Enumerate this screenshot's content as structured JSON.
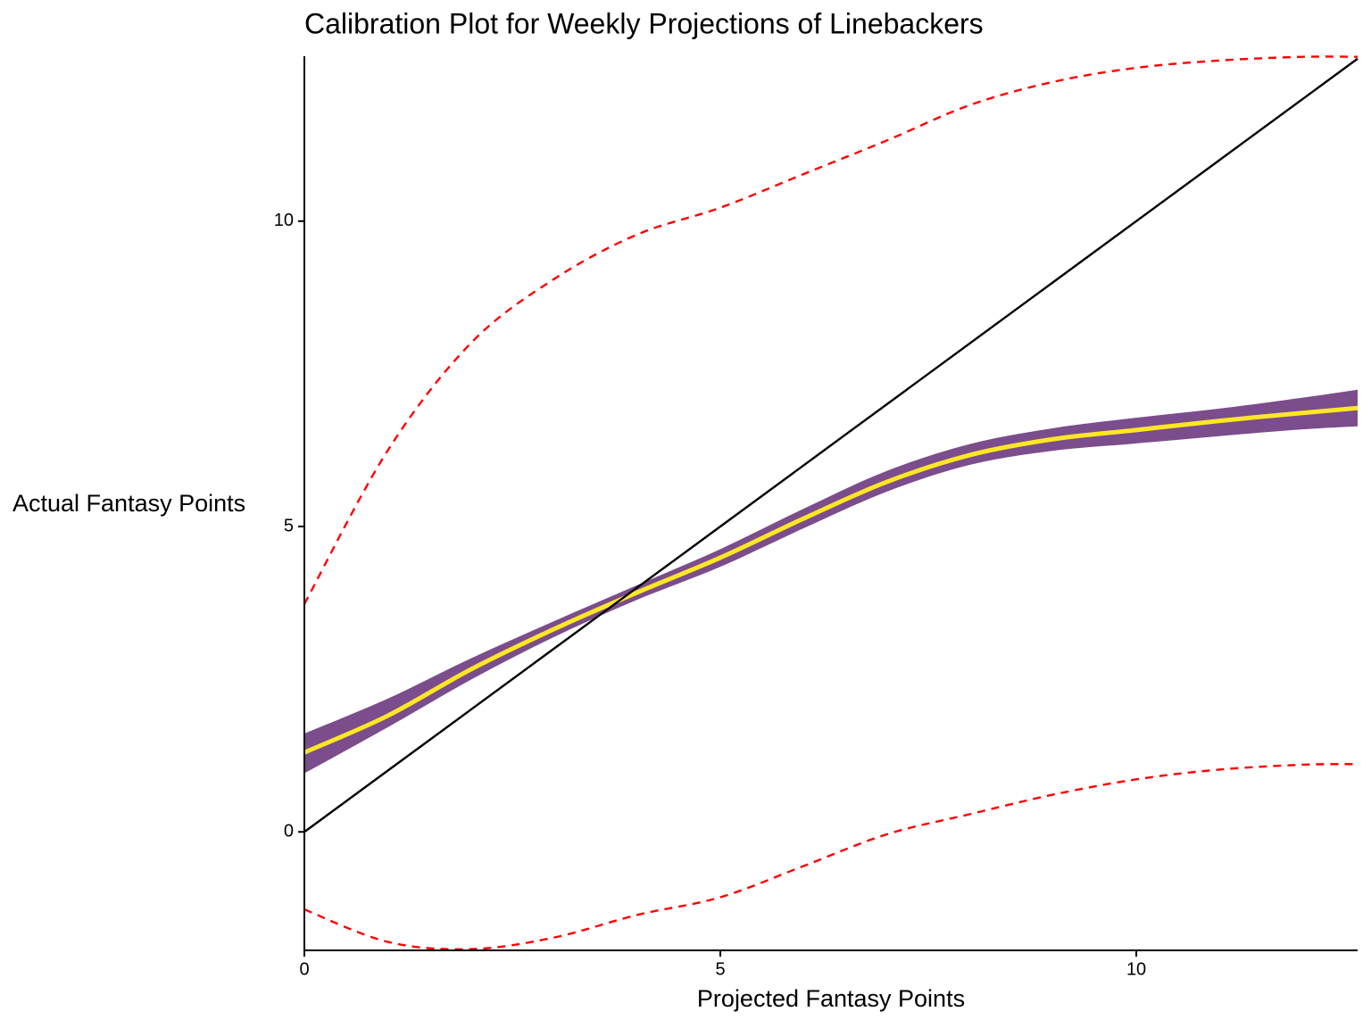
{
  "chart_data": {
    "type": "line",
    "title": "Calibration Plot for Weekly Projections of Linebackers",
    "x_label": "Projected Fantasy Points",
    "y_label": "Actual Fantasy Points",
    "x": [
      0,
      1,
      2,
      3,
      4,
      5,
      6,
      7,
      8,
      9,
      10,
      11,
      12,
      12.66
    ],
    "series": [
      {
        "color": "#fde725",
        "band_color": "#7b4d8c",
        "dash": false,
        "values": [
          1.3,
          1.9,
          2.66,
          3.32,
          3.92,
          4.49,
          5.13,
          5.73,
          6.17,
          6.43,
          6.58,
          6.73,
          6.86,
          6.94
        ],
        "lower": [
          0.96,
          1.71,
          2.49,
          3.19,
          3.8,
          4.34,
          4.97,
          5.57,
          6.01,
          6.24,
          6.36,
          6.48,
          6.59,
          6.64
        ],
        "upper": [
          1.61,
          2.18,
          2.84,
          3.45,
          4.04,
          4.63,
          5.29,
          5.91,
          6.35,
          6.61,
          6.78,
          6.93,
          7.11,
          7.24
        ]
      },
      {
        "color": "#000000",
        "dash": false,
        "values": [
          0,
          1,
          2,
          3,
          4,
          5,
          6,
          7,
          8,
          9,
          10,
          11,
          12,
          12.66
        ]
      },
      {
        "color": "#ff0000",
        "dash": true,
        "values": [
          3.73,
          6.24,
          8.0,
          9.05,
          9.78,
          10.22,
          10.77,
          11.32,
          11.9,
          12.28,
          12.51,
          12.63,
          12.69,
          12.69
        ]
      },
      {
        "color": "#ff0000",
        "dash": true,
        "values": [
          -1.27,
          -1.8,
          -1.92,
          -1.73,
          -1.36,
          -1.07,
          -0.56,
          -0.04,
          0.29,
          0.61,
          0.86,
          1.02,
          1.1,
          1.11
        ]
      }
    ],
    "xlim": [
      0,
      12.66
    ],
    "ylim": [
      -1.94,
      12.7
    ],
    "xticks": [
      0,
      5,
      10
    ],
    "yticks": [
      0,
      5,
      10
    ],
    "grid": false
  }
}
